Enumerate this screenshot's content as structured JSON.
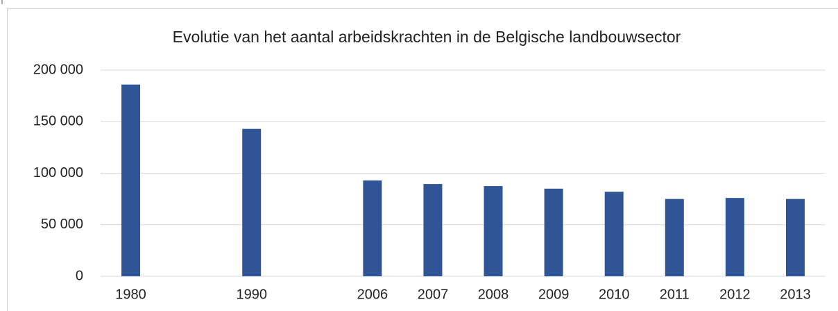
{
  "chart_data": {
    "type": "bar",
    "title": "Evolutie van het aantal arbeidskrachten in de Belgische landbouwsector",
    "categories": [
      "1980",
      null,
      "1990",
      null,
      "2006",
      "2007",
      "2008",
      "2009",
      "2010",
      "2011",
      "2012",
      "2013"
    ],
    "values": [
      186000,
      null,
      143000,
      null,
      93000,
      89500,
      87500,
      85000,
      82000,
      75000,
      76000,
      75000
    ],
    "color": "#2f5597",
    "ylim": [
      0,
      200000
    ],
    "yticks": [
      0,
      {
        "value": 50000,
        "label": "50 000"
      },
      {
        "value": 100000,
        "label": "100 000"
      },
      {
        "value": 150000,
        "label": "150 000"
      },
      {
        "value": 200000,
        "label": "200 000"
      }
    ],
    "grid": true
  }
}
